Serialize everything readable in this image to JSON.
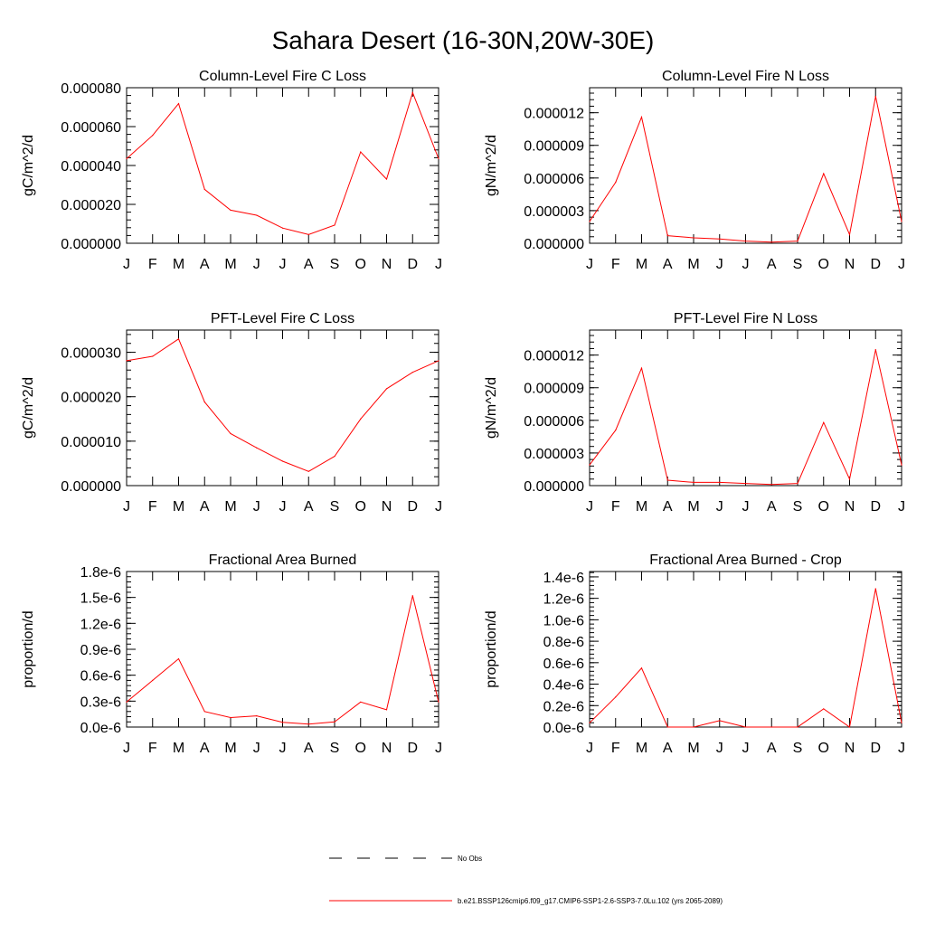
{
  "page_title": "Sahara Desert (16-30N,20W-30E)",
  "legend": {
    "obs_label": "No Obs",
    "model_label": "b.e21.BSSP126cmip6.f09_g17.CMIP6-SSP1-2.6-SSP3-7.0Lu.102 (yrs 2065-2089)",
    "model_color": "#ff0000",
    "obs_color": "#000000"
  },
  "chart_data": [
    {
      "type": "line",
      "title": "Column-Level Fire C Loss",
      "ylabel": "gC/m^2/d",
      "categories": [
        "J",
        "F",
        "M",
        "A",
        "M",
        "J",
        "J",
        "A",
        "S",
        "O",
        "N",
        "D",
        "J"
      ],
      "ylim": [
        0,
        8e-05
      ],
      "yticks": [
        0,
        2e-05,
        4e-05,
        6e-05,
        8e-05
      ],
      "yticklabels": [
        "0.000000",
        "0.000020",
        "0.000040",
        "0.000060",
        "0.000080"
      ],
      "series": [
        {
          "values": [
            4.35e-05,
            5.55e-05,
            7.18e-05,
            2.77e-05,
            1.7e-05,
            1.44e-05,
            7.8e-06,
            4.5e-06,
            9.3e-06,
            4.7e-05,
            3.3e-05,
            7.75e-05,
            4.35e-05
          ]
        }
      ]
    },
    {
      "type": "line",
      "title": "Column-Level Fire N Loss",
      "ylabel": "gN/m^2/d",
      "categories": [
        "J",
        "F",
        "M",
        "A",
        "M",
        "J",
        "J",
        "A",
        "S",
        "O",
        "N",
        "D",
        "J"
      ],
      "ylim": [
        0,
        1.43e-05
      ],
      "yticks": [
        0,
        3e-06,
        6e-06,
        9e-06,
        1.2e-05
      ],
      "yticklabels": [
        "0.000000",
        "0.000003",
        "0.000006",
        "0.000009",
        "0.000012"
      ],
      "series": [
        {
          "values": [
            2e-06,
            5.6e-06,
            1.16e-05,
            7e-07,
            5e-07,
            4e-07,
            2e-07,
            1e-07,
            2e-07,
            6.4e-06,
            8e-07,
            1.35e-05,
            2e-06
          ]
        }
      ]
    },
    {
      "type": "line",
      "title": "PFT-Level Fire C Loss",
      "ylabel": "gC/m^2/d",
      "categories": [
        "J",
        "F",
        "M",
        "A",
        "M",
        "J",
        "J",
        "A",
        "S",
        "O",
        "N",
        "D",
        "J"
      ],
      "ylim": [
        0,
        3.5e-05
      ],
      "yticks": [
        0,
        1e-05,
        2e-05,
        3e-05
      ],
      "yticklabels": [
        "0.000000",
        "0.000010",
        "0.000020",
        "0.000030"
      ],
      "series": [
        {
          "values": [
            2.81e-05,
            2.91e-05,
            3.3e-05,
            1.88e-05,
            1.17e-05,
            8.5e-06,
            5.5e-06,
            3.2e-06,
            6.6e-06,
            1.5e-05,
            2.18e-05,
            2.55e-05,
            2.81e-05
          ]
        }
      ]
    },
    {
      "type": "line",
      "title": "PFT-Level Fire N Loss",
      "ylabel": "gN/m^2/d",
      "categories": [
        "J",
        "F",
        "M",
        "A",
        "M",
        "J",
        "J",
        "A",
        "S",
        "O",
        "N",
        "D",
        "J"
      ],
      "ylim": [
        0,
        1.43e-05
      ],
      "yticks": [
        0,
        3e-06,
        6e-06,
        9e-06,
        1.2e-05
      ],
      "yticklabels": [
        "0.000000",
        "0.000003",
        "0.000006",
        "0.000009",
        "0.000012"
      ],
      "series": [
        {
          "values": [
            1.9e-06,
            5.1e-06,
            1.08e-05,
            5e-07,
            3e-07,
            3e-07,
            2e-07,
            1e-07,
            2e-07,
            5.8e-06,
            6e-07,
            1.25e-05,
            1.9e-06
          ]
        }
      ]
    },
    {
      "type": "line",
      "title": "Fractional Area Burned",
      "ylabel": "proportion/d",
      "categories": [
        "J",
        "F",
        "M",
        "A",
        "M",
        "J",
        "J",
        "A",
        "S",
        "O",
        "N",
        "D",
        "J"
      ],
      "ylim": [
        0,
        1.8e-06
      ],
      "yticks": [
        0,
        3e-07,
        6e-07,
        9e-07,
        1.2e-06,
        1.5e-06,
        1.8e-06
      ],
      "yticklabels": [
        "0.0e-6",
        "0.3e-6",
        "0.6e-6",
        "0.9e-6",
        "1.2e-6",
        "1.5e-6",
        "1.8e-6"
      ],
      "series": [
        {
          "values": [
            2.9e-07,
            5.4e-07,
            7.9e-07,
            1.8e-07,
            1.1e-07,
            1.3e-07,
            5.5e-08,
            3.5e-08,
            6e-08,
            2.9e-07,
            2e-07,
            1.52e-06,
            2.9e-07
          ]
        }
      ]
    },
    {
      "type": "line",
      "title": "Fractional Area Burned - Crop",
      "ylabel": "proportion/d",
      "categories": [
        "J",
        "F",
        "M",
        "A",
        "M",
        "J",
        "J",
        "A",
        "S",
        "O",
        "N",
        "D",
        "J"
      ],
      "ylim": [
        0,
        1.45e-06
      ],
      "yticks": [
        0,
        2e-07,
        4e-07,
        6e-07,
        8e-07,
        1e-06,
        1.2e-06,
        1.4e-06
      ],
      "yticklabels": [
        "0.0e-6",
        "0.2e-6",
        "0.4e-6",
        "0.6e-6",
        "0.8e-6",
        "1.0e-6",
        "1.2e-6",
        "1.4e-6"
      ],
      "series": [
        {
          "values": [
            4e-08,
            2.8e-07,
            5.5e-07,
            0,
            0,
            6e-08,
            0,
            0,
            0,
            1.7e-07,
            0,
            1.29e-06,
            4e-08
          ]
        }
      ]
    }
  ]
}
